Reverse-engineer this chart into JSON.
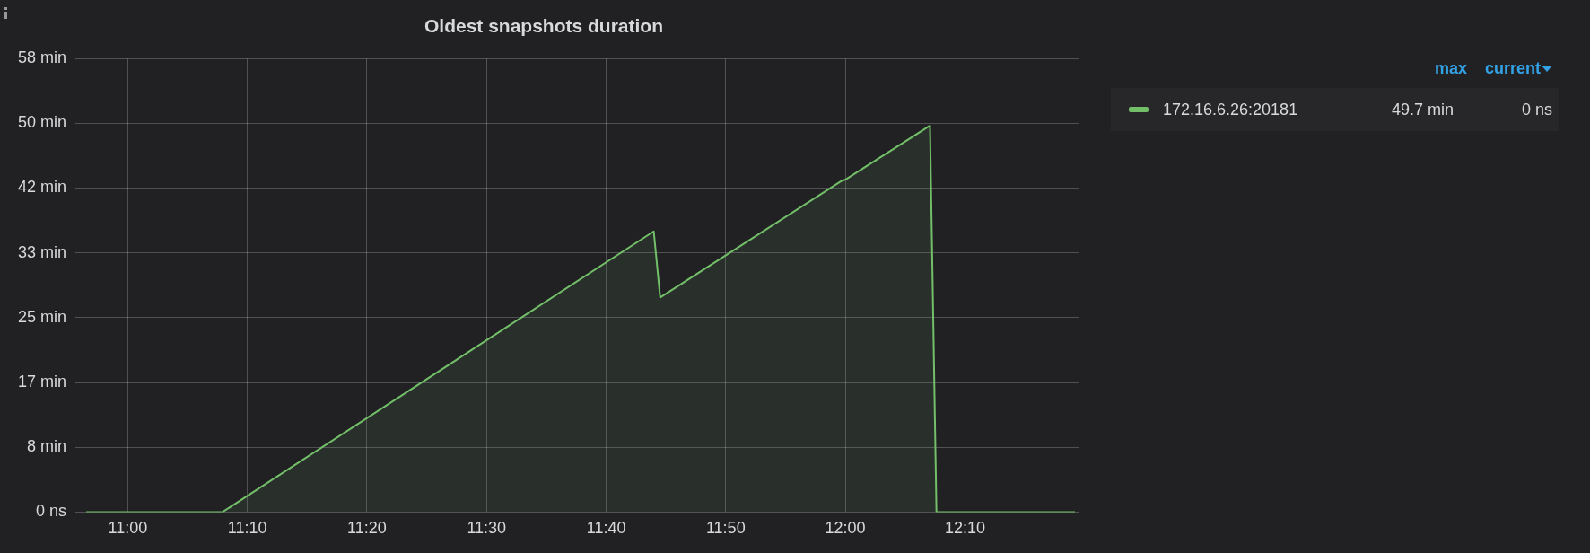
{
  "chart_data": {
    "type": "area",
    "title": "Oldest snapshots duration",
    "x": [
      10.942,
      11.132,
      11.733,
      11.742,
      11.995,
      12.001,
      12.118,
      12.127,
      12.32
    ],
    "series": [
      {
        "name": "172.16.6.26:20181",
        "color": "#73bf69",
        "values": [
          0,
          0,
          36.1,
          27.6,
          42.6,
          42.8,
          49.7,
          0,
          0
        ]
      }
    ],
    "xlim": [
      10.942,
      12.325
    ],
    "xticks": [
      {
        "value": 11,
        "label": "11:00"
      },
      {
        "value": 11.1667,
        "label": "11:10"
      },
      {
        "value": 11.3333,
        "label": "11:20"
      },
      {
        "value": 11.5,
        "label": "11:30"
      },
      {
        "value": 11.6667,
        "label": "11:40"
      },
      {
        "value": 11.8333,
        "label": "11:50"
      },
      {
        "value": 12,
        "label": "12:00"
      },
      {
        "value": 12.1667,
        "label": "12:10"
      }
    ],
    "ylim": [
      0,
      58.33
    ],
    "yticks": [
      {
        "value": 0,
        "label": "0 ns"
      },
      {
        "value": 8.33,
        "label": "8 min"
      },
      {
        "value": 16.67,
        "label": "17 min"
      },
      {
        "value": 25,
        "label": "25 min"
      },
      {
        "value": 33.33,
        "label": "33 min"
      },
      {
        "value": 41.67,
        "label": "42 min"
      },
      {
        "value": 50,
        "label": "50 min"
      },
      {
        "value": 58.33,
        "label": "58 min"
      }
    ],
    "grid": true,
    "legend": "right",
    "marker": "none",
    "annotations": [
      "max",
      "current",
      "49.7 min",
      "0 ns"
    ]
  }
}
